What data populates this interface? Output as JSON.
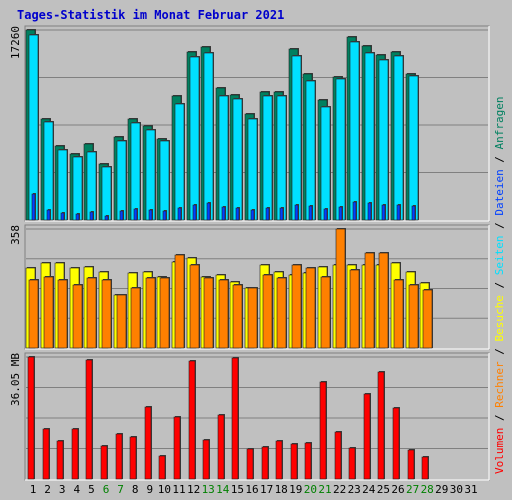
{
  "chart_data": {
    "type": "bar",
    "title": "Tages-Statistik im Monat Februar 2021",
    "days": [
      "1",
      "2",
      "3",
      "4",
      "5",
      "6",
      "7",
      "8",
      "9",
      "10",
      "11",
      "12",
      "13",
      "14",
      "15",
      "16",
      "17",
      "18",
      "19",
      "20",
      "21",
      "22",
      "23",
      "24",
      "25",
      "26",
      "27",
      "28",
      "29",
      "30",
      "31"
    ],
    "weekend_days": [
      "6",
      "7",
      "13",
      "14",
      "20",
      "21",
      "27",
      "28"
    ],
    "panels": [
      {
        "id": "top",
        "ymax_label": "17260",
        "ylim": [
          0,
          17260
        ],
        "series": [
          {
            "name": "Anfragen",
            "color": "#008060",
            "values": [
              17260,
              9200,
              6700,
              6000,
              6900,
              5100,
              7500,
              9200,
              8500,
              7400,
              11300,
              15300,
              15700,
              12000,
              11400,
              9600,
              11600,
              11600,
              15500,
              13300,
              10900,
              13000,
              16600,
              15800,
              15000,
              15300,
              13300,
              0,
              0,
              0,
              0
            ]
          },
          {
            "name": "Seiten",
            "color": "#00e0ff",
            "values": [
              16800,
              8900,
              6400,
              5700,
              6200,
              4800,
              7200,
              8800,
              8200,
              7200,
              10500,
              14800,
              15200,
              11300,
              11000,
              9200,
              11300,
              11300,
              14900,
              12600,
              10300,
              12800,
              16200,
              15200,
              14500,
              14900,
              13100,
              0,
              0,
              0,
              0
            ]
          },
          {
            "name": "Dateien",
            "color": "#0040ff",
            "values": [
              2400,
              900,
              600,
              500,
              700,
              400,
              800,
              1000,
              900,
              800,
              1100,
              1400,
              1500,
              1200,
              1100,
              900,
              1100,
              1100,
              1400,
              1300,
              1000,
              1200,
              1600,
              1500,
              1400,
              1400,
              1300,
              0,
              0,
              0,
              0
            ]
          }
        ]
      },
      {
        "id": "middle",
        "ymax_label": "358",
        "ylim": [
          0,
          358
        ],
        "series": [
          {
            "name": "Besuche",
            "color": "#ffff00",
            "values": [
              240,
              255,
              255,
              240,
              245,
              230,
              160,
              225,
              230,
              215,
              260,
              270,
              215,
              220,
              200,
              180,
              250,
              230,
              220,
              225,
              245,
              250,
              250,
              250,
              250,
              255,
              230,
              195,
              0,
              0,
              0
            ]
          },
          {
            "name": "Rechner",
            "color": "#ff8000",
            "values": [
              205,
              215,
              205,
              190,
              210,
              205,
              160,
              180,
              210,
              210,
              280,
              250,
              210,
              205,
              190,
              180,
              220,
              210,
              250,
              240,
              215,
              358,
              235,
              285,
              285,
              205,
              190,
              175,
              0,
              0,
              0
            ]
          }
        ]
      },
      {
        "id": "bottom",
        "ymax_label": "36.05 MB",
        "ylim": [
          0,
          36.05
        ],
        "series": [
          {
            "name": "Volumen",
            "color": "#ff0000",
            "values": [
              36.05,
              14.8,
              11.2,
              14.7,
              35.1,
              9.7,
              13.4,
              12.3,
              21.2,
              6.9,
              18.2,
              34.8,
              11.5,
              18.8,
              35.8,
              8.9,
              9.4,
              11.3,
              10.3,
              10.7,
              28.6,
              13.9,
              9.3,
              25.1,
              31.7,
              20.9,
              8.6,
              6.5,
              0,
              0,
              0
            ]
          }
        ]
      }
    ],
    "side_legend": [
      {
        "text": "Volumen",
        "color": "#ff0000"
      },
      {
        "text": " / ",
        "color": "#000000"
      },
      {
        "text": "Rechner",
        "color": "#ff8000"
      },
      {
        "text": " / ",
        "color": "#000000"
      },
      {
        "text": "Besuche",
        "color": "#ffff00"
      },
      {
        "text": " / ",
        "color": "#000000"
      },
      {
        "text": "Seiten",
        "color": "#00e0ff"
      },
      {
        "text": " / ",
        "color": "#000000"
      },
      {
        "text": "Dateien",
        "color": "#0040ff"
      },
      {
        "text": " / ",
        "color": "#000000"
      },
      {
        "text": "Anfragen",
        "color": "#008060"
      }
    ],
    "colors": {
      "background": "#c0c0c0",
      "plot_background": "#c0c0c0",
      "gridline": "#808080",
      "weekday_label": "#000000",
      "weekend_label": "#008000"
    }
  }
}
